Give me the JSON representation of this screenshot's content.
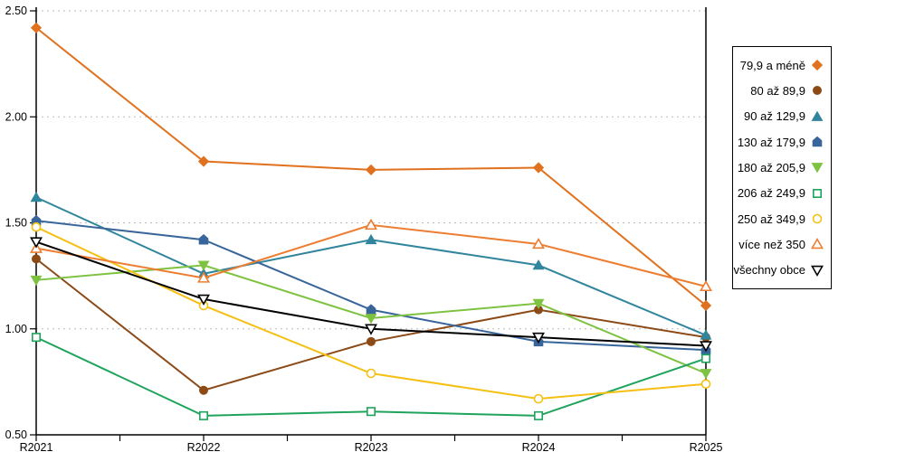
{
  "chart_data": {
    "type": "line",
    "title": "",
    "x": [
      "R2021",
      "R2022",
      "R2023",
      "R2024",
      "R2025"
    ],
    "y_tick_labels": [
      "2.50",
      "2.00",
      "1.50",
      "1.00",
      "0.50"
    ],
    "ylim": [
      0.5,
      2.5
    ],
    "grid": "horizontal-dotted",
    "grid_color": "#BDBDBD",
    "axis_color": "#000000",
    "background": "#FFFFFF",
    "legend_position": "right",
    "series": [
      {
        "name": "79,9 a méně",
        "marker": "diamond",
        "fill": true,
        "color": "#E0711E",
        "values": [
          2.42,
          1.79,
          1.75,
          1.76,
          1.11
        ]
      },
      {
        "name": "80 až 89,9",
        "marker": "circle",
        "fill": true,
        "color": "#8C4A17",
        "values": [
          1.33,
          0.71,
          0.94,
          1.09,
          0.96
        ]
      },
      {
        "name": "90 až 129,9",
        "marker": "triangle-up",
        "fill": true,
        "color": "#31859C",
        "values": [
          1.62,
          1.26,
          1.42,
          1.3,
          0.97
        ]
      },
      {
        "name": "130 až 179,9",
        "marker": "pentagon",
        "fill": true,
        "color": "#38659A",
        "values": [
          1.51,
          1.42,
          1.09,
          0.94,
          0.9
        ]
      },
      {
        "name": "180 až 205,9",
        "marker": "triangle-down",
        "fill": true,
        "color": "#7EC241",
        "values": [
          1.23,
          1.3,
          1.05,
          1.12,
          0.79
        ]
      },
      {
        "name": "206 až 249,9",
        "marker": "square",
        "fill": false,
        "color": "#1FA45C",
        "values": [
          0.96,
          0.59,
          0.61,
          0.59,
          0.86
        ]
      },
      {
        "name": "250 až 349,9",
        "marker": "circle",
        "fill": false,
        "color": "#F5C013",
        "values": [
          1.48,
          1.11,
          0.79,
          0.67,
          0.74
        ]
      },
      {
        "name": "více než 350",
        "marker": "triangle-up",
        "fill": false,
        "color": "#ED7D31",
        "values": [
          1.38,
          1.24,
          1.49,
          1.4,
          1.2
        ]
      },
      {
        "name": "všechny obce",
        "marker": "triangle-down",
        "fill": false,
        "color": "#000000",
        "values": [
          1.41,
          1.14,
          1.0,
          0.96,
          0.92
        ]
      }
    ]
  }
}
